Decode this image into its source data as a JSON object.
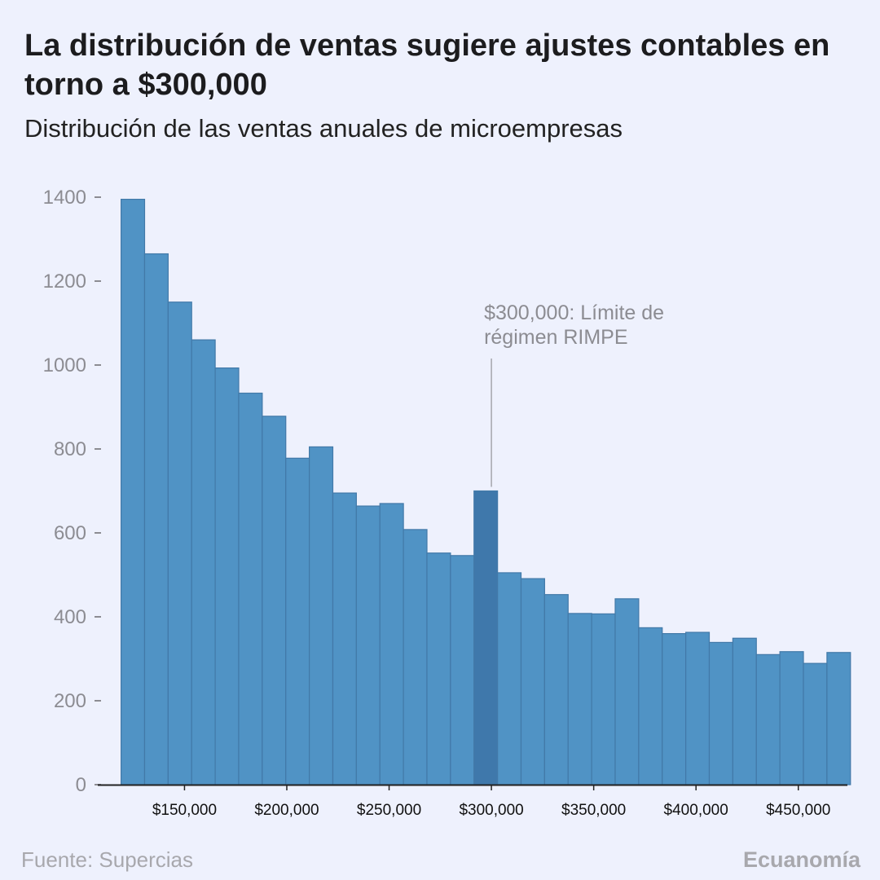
{
  "header": {
    "title": "La distribución de ventas sugiere ajustes contables en torno a $300,000",
    "subtitle": "Distribución de las ventas anuales de microempresas"
  },
  "footer": {
    "source": "Fuente: Supercias",
    "brand": "Ecuanomía"
  },
  "chart_data": {
    "type": "bar",
    "title": "La distribución de ventas sugiere ajustes contables en torno a $300,000",
    "subtitle": "Distribución de las ventas anuales de microempresas",
    "xlabel": "",
    "ylabel": "",
    "bin_start": 119000,
    "bin_width": 11500,
    "values": [
      1395,
      1265,
      1150,
      1060,
      993,
      933,
      878,
      778,
      805,
      695,
      664,
      670,
      608,
      552,
      546,
      700,
      505,
      491,
      453,
      408,
      407,
      443,
      374,
      360,
      363,
      339,
      349,
      310,
      317,
      289,
      315
    ],
    "highlight_index": 15,
    "xlim": [
      110000,
      474000
    ],
    "ylim": [
      0,
      1400
    ],
    "yticks": [
      0,
      200,
      400,
      600,
      800,
      1000,
      1200,
      1400
    ],
    "xticks": [
      150000,
      200000,
      250000,
      300000,
      350000,
      400000,
      450000
    ],
    "xtick_labels": [
      "$150,000",
      "$200,000",
      "$250,000",
      "$300,000",
      "$350,000",
      "$400,000",
      "$450,000"
    ],
    "annotation": {
      "x": 300000,
      "line1": "$300,000: Límite de",
      "line2": "régimen RIMPE"
    },
    "colors": {
      "bar": "#5093c5",
      "bar_edge": "#4279a8",
      "highlight": "#3f78ab",
      "axis": "#222222",
      "tick_label": "#8c8c92",
      "annotation": "#8c8c92"
    },
    "grid": false
  }
}
